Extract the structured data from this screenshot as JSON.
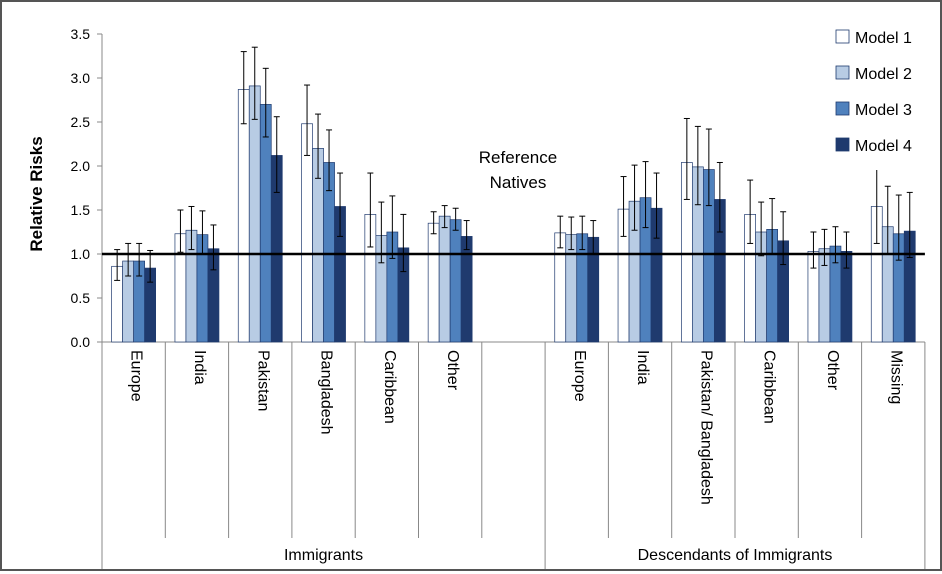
{
  "chart_data": {
    "type": "bar",
    "ylabel": "Relative Risks",
    "ylim": [
      0,
      3.5
    ],
    "yticks": [
      "0.0",
      "0.5",
      "1.0",
      "1.5",
      "2.0",
      "2.5",
      "3.0",
      "3.5"
    ],
    "reference_line": {
      "value": 1.0,
      "label_line1": "Reference",
      "label_line2": "Natives"
    },
    "groups": [
      {
        "label": "Immigrants",
        "categories": [
          "Europe",
          "India",
          "Pakistan",
          "Bangladesh",
          "Caribbean",
          "Other",
          ""
        ]
      },
      {
        "label": "Descendants of Immigrants",
        "categories": [
          "Europe",
          "India",
          "Pakistan/ Bangladesh",
          "Caribbean",
          "Other",
          "Missing"
        ]
      }
    ],
    "categories": [
      "Europe",
      "India",
      "Pakistan",
      "Bangladesh",
      "Caribbean",
      "Other",
      "",
      "Europe",
      "India",
      "Pakistan/ Bangladesh",
      "Caribbean",
      "Other",
      "Missing"
    ],
    "series": [
      {
        "name": "Model 1",
        "color": "#ffffff",
        "values": [
          0.86,
          1.23,
          2.87,
          2.48,
          1.45,
          1.35,
          null,
          1.24,
          1.51,
          2.04,
          1.45,
          1.03,
          1.54
        ],
        "err_low": [
          0.7,
          1.02,
          2.48,
          2.12,
          1.08,
          1.23,
          null,
          1.07,
          1.2,
          1.62,
          1.12,
          0.84,
          1.12
        ],
        "err_high": [
          1.05,
          1.5,
          3.3,
          2.92,
          1.92,
          1.48,
          null,
          1.43,
          1.88,
          2.54,
          1.84,
          1.25,
          2.03
        ]
      },
      {
        "name": "Model 2",
        "color": "#b8cce4",
        "values": [
          0.92,
          1.27,
          2.91,
          2.2,
          1.21,
          1.43,
          null,
          1.22,
          1.6,
          1.99,
          1.25,
          1.06,
          1.31
        ],
        "err_low": [
          0.75,
          1.05,
          2.53,
          1.86,
          0.9,
          1.3,
          null,
          1.05,
          1.27,
          1.56,
          0.98,
          0.87,
          1.0
        ],
        "err_high": [
          1.12,
          1.54,
          3.35,
          2.59,
          1.59,
          1.55,
          null,
          1.42,
          2.01,
          2.45,
          1.59,
          1.28,
          1.77
        ]
      },
      {
        "name": "Model 3",
        "color": "#4f81bd",
        "values": [
          0.92,
          1.22,
          2.7,
          2.04,
          1.25,
          1.39,
          null,
          1.23,
          1.64,
          1.96,
          1.28,
          1.09,
          1.23
        ],
        "err_low": [
          0.75,
          1.0,
          2.33,
          1.72,
          0.95,
          1.27,
          null,
          1.05,
          1.3,
          1.55,
          1.0,
          0.9,
          0.93
        ],
        "err_high": [
          1.12,
          1.49,
          3.11,
          2.41,
          1.66,
          1.52,
          null,
          1.43,
          2.05,
          2.42,
          1.63,
          1.31,
          1.67
        ]
      },
      {
        "name": "Model 4",
        "color": "#1f3a6e",
        "values": [
          0.84,
          1.06,
          2.12,
          1.54,
          1.07,
          1.2,
          null,
          1.19,
          1.52,
          1.62,
          1.15,
          1.03,
          1.26
        ],
        "err_low": [
          0.68,
          0.82,
          1.7,
          1.2,
          0.8,
          1.05,
          null,
          1.0,
          1.18,
          1.25,
          0.88,
          0.84,
          0.96
        ],
        "err_high": [
          1.04,
          1.33,
          2.56,
          1.92,
          1.45,
          1.38,
          null,
          1.38,
          1.92,
          2.04,
          1.48,
          1.25,
          1.7
        ]
      }
    ],
    "legend_position": "top-right",
    "grid": false
  }
}
